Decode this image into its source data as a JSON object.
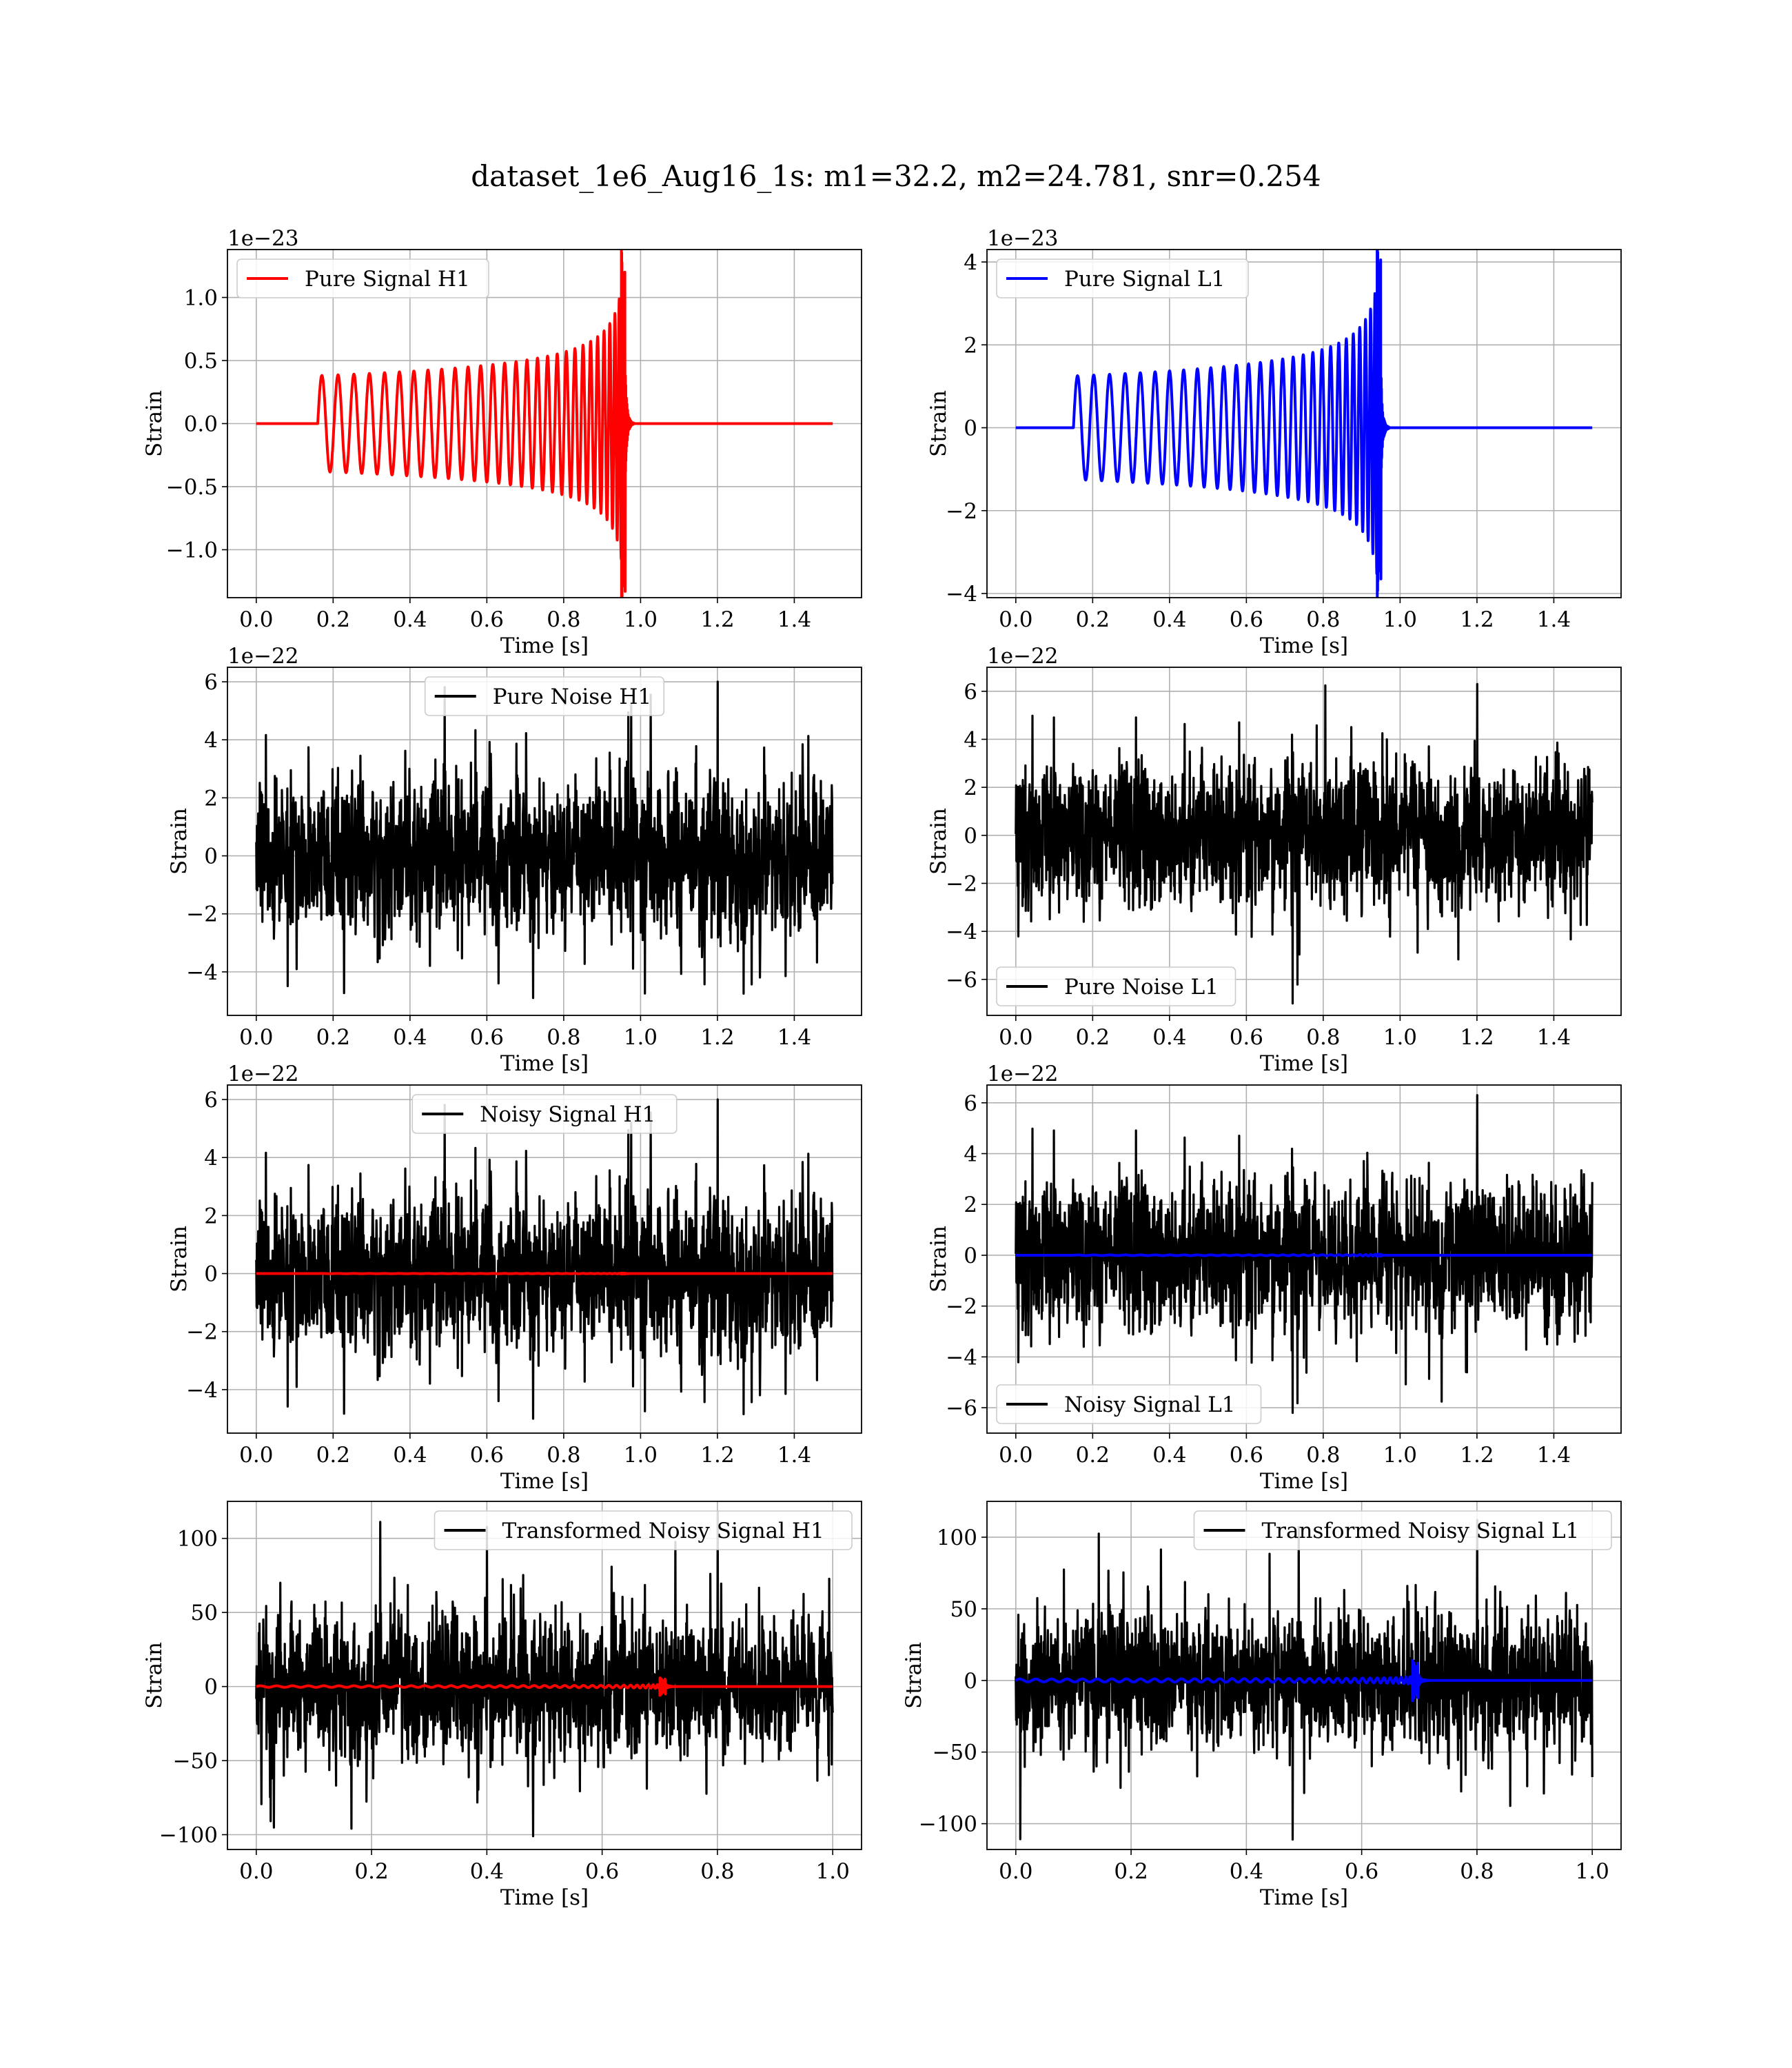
{
  "figure": {
    "suptitle": "dataset_1e6_Aug16_1s: m1=32.2, m2=24.781, snr=0.254"
  },
  "chart_data": [
    {
      "id": "p0",
      "type": "line",
      "title": "",
      "xlabel": "Time [s]",
      "ylabel": "Strain",
      "offset_label": "1e−23",
      "xlim": [
        -0.075,
        1.575
      ],
      "ylim": [
        -1.38,
        1.38
      ],
      "xticks": [
        0.0,
        0.2,
        0.4,
        0.6,
        0.8,
        1.0,
        1.2,
        1.4
      ],
      "xtick_labels": [
        "0.0",
        "0.2",
        "0.4",
        "0.6",
        "0.8",
        "1.0",
        "1.2",
        "1.4"
      ],
      "yticks": [
        -1.0,
        -0.5,
        0.0,
        0.5,
        1.0
      ],
      "ytick_labels": [
        "−1.0",
        "−0.5",
        "0.0",
        "0.5",
        "1.0"
      ],
      "grid": true,
      "legend_position": "upper left",
      "legend": [
        "Pure Signal H1"
      ],
      "series": [
        {
          "name": "Pure Signal H1",
          "color": "#ff0000",
          "kind": "chirp",
          "x_start": 0.0,
          "x_end": 1.5,
          "t_on": 0.16,
          "t_merge": 0.962,
          "amp_start": 0.38,
          "amp_peak": 1.2,
          "amp_min": -1.33,
          "cycles": 30,
          "seed": 1
        }
      ]
    },
    {
      "id": "p1",
      "type": "line",
      "title": "",
      "xlabel": "Time [s]",
      "ylabel": "Strain",
      "offset_label": "1e−23",
      "xlim": [
        -0.075,
        1.575
      ],
      "ylim": [
        -4.1,
        4.3
      ],
      "xticks": [
        0.0,
        0.2,
        0.4,
        0.6,
        0.8,
        1.0,
        1.2,
        1.4
      ],
      "xtick_labels": [
        "0.0",
        "0.2",
        "0.4",
        "0.6",
        "0.8",
        "1.0",
        "1.2",
        "1.4"
      ],
      "yticks": [
        -4,
        -2,
        0,
        2,
        4
      ],
      "ytick_labels": [
        "−4",
        "−2",
        "0",
        "2",
        "4"
      ],
      "grid": true,
      "legend_position": "upper left",
      "legend": [
        "Pure Signal L1"
      ],
      "series": [
        {
          "name": "Pure Signal L1",
          "color": "#0000ff",
          "kind": "chirp",
          "x_start": 0.0,
          "x_end": 1.5,
          "t_on": 0.15,
          "t_merge": 0.952,
          "amp_start": 1.25,
          "amp_peak": 4.05,
          "amp_min": -3.65,
          "cycles": 30,
          "seed": 2
        }
      ]
    },
    {
      "id": "p2",
      "type": "line",
      "title": "",
      "xlabel": "Time [s]",
      "ylabel": "Strain",
      "offset_label": "1e−22",
      "xlim": [
        -0.075,
        1.575
      ],
      "ylim": [
        -5.5,
        6.5
      ],
      "xticks": [
        0.0,
        0.2,
        0.4,
        0.6,
        0.8,
        1.0,
        1.2,
        1.4
      ],
      "xtick_labels": [
        "0.0",
        "0.2",
        "0.4",
        "0.6",
        "0.8",
        "1.0",
        "1.2",
        "1.4"
      ],
      "yticks": [
        -4,
        -2,
        0,
        2,
        4,
        6
      ],
      "ytick_labels": [
        "−4",
        "−2",
        "0",
        "2",
        "4",
        "6"
      ],
      "grid": true,
      "legend_position": "upper center",
      "legend": [
        "Pure Noise H1"
      ],
      "series": [
        {
          "name": "Pure Noise H1",
          "color": "#000000",
          "kind": "noise",
          "x_start": 0.0,
          "x_end": 1.5,
          "sigma": 1.35,
          "max": 6.0,
          "min": -4.9,
          "seed": 11
        }
      ]
    },
    {
      "id": "p3",
      "type": "line",
      "title": "",
      "xlabel": "Time [s]",
      "ylabel": "Strain",
      "offset_label": "1e−22",
      "xlim": [
        -0.075,
        1.575
      ],
      "ylim": [
        -7.5,
        7.0
      ],
      "xticks": [
        0.0,
        0.2,
        0.4,
        0.6,
        0.8,
        1.0,
        1.2,
        1.4
      ],
      "xtick_labels": [
        "0.0",
        "0.2",
        "0.4",
        "0.6",
        "0.8",
        "1.0",
        "1.2",
        "1.4"
      ],
      "yticks": [
        -6,
        -4,
        -2,
        0,
        2,
        4,
        6
      ],
      "ytick_labels": [
        "−6",
        "−4",
        "−2",
        "0",
        "2",
        "4",
        "6"
      ],
      "grid": true,
      "legend_position": "lower left",
      "legend": [
        "Pure Noise L1"
      ],
      "series": [
        {
          "name": "Pure Noise L1",
          "color": "#000000",
          "kind": "noise",
          "x_start": 0.0,
          "x_end": 1.5,
          "sigma": 1.45,
          "max": 6.3,
          "min": -7.0,
          "seed": 12
        }
      ]
    },
    {
      "id": "p4",
      "type": "line",
      "title": "",
      "xlabel": "Time [s]",
      "ylabel": "Strain",
      "offset_label": "1e−22",
      "xlim": [
        -0.075,
        1.575
      ],
      "ylim": [
        -5.5,
        6.5
      ],
      "xticks": [
        0.0,
        0.2,
        0.4,
        0.6,
        0.8,
        1.0,
        1.2,
        1.4
      ],
      "xtick_labels": [
        "0.0",
        "0.2",
        "0.4",
        "0.6",
        "0.8",
        "1.0",
        "1.2",
        "1.4"
      ],
      "yticks": [
        -4,
        -2,
        0,
        2,
        4,
        6
      ],
      "ytick_labels": [
        "−4",
        "−2",
        "0",
        "2",
        "4",
        "6"
      ],
      "grid": true,
      "legend_position": "upper center",
      "legend": [
        "Noisy Signal H1"
      ],
      "series": [
        {
          "name": "Noisy Signal H1",
          "color": "#000000",
          "kind": "noise",
          "x_start": 0.0,
          "x_end": 1.5,
          "sigma": 1.35,
          "max": 6.0,
          "min": -5.0,
          "seed": 11
        },
        {
          "name": "",
          "color": "#ff0000",
          "kind": "chirp",
          "x_start": 0.0,
          "x_end": 1.5,
          "t_on": 0.16,
          "t_merge": 0.962,
          "amp_start": 0.0038,
          "amp_peak": 0.012,
          "amp_min": -0.013,
          "cycles": 30,
          "seed": 1
        }
      ]
    },
    {
      "id": "p5",
      "type": "line",
      "title": "",
      "xlabel": "Time [s]",
      "ylabel": "Strain",
      "offset_label": "1e−22",
      "xlim": [
        -0.075,
        1.575
      ],
      "ylim": [
        -7.0,
        6.7
      ],
      "xticks": [
        0.0,
        0.2,
        0.4,
        0.6,
        0.8,
        1.0,
        1.2,
        1.4
      ],
      "xtick_labels": [
        "0.0",
        "0.2",
        "0.4",
        "0.6",
        "0.8",
        "1.0",
        "1.2",
        "1.4"
      ],
      "yticks": [
        -6,
        -4,
        -2,
        0,
        2,
        4,
        6
      ],
      "ytick_labels": [
        "−6",
        "−4",
        "−2",
        "0",
        "2",
        "4",
        "6"
      ],
      "grid": true,
      "legend_position": "lower left",
      "legend": [
        "Noisy Signal L1"
      ],
      "series": [
        {
          "name": "Noisy Signal L1",
          "color": "#000000",
          "kind": "noise",
          "x_start": 0.0,
          "x_end": 1.5,
          "sigma": 1.45,
          "max": 6.3,
          "min": -6.2,
          "seed": 12
        },
        {
          "name": "",
          "color": "#0000ff",
          "kind": "chirp",
          "x_start": 0.0,
          "x_end": 1.5,
          "t_on": 0.15,
          "t_merge": 0.952,
          "amp_start": 0.0125,
          "amp_peak": 0.041,
          "amp_min": -0.037,
          "cycles": 30,
          "seed": 2
        }
      ]
    },
    {
      "id": "p6",
      "type": "line",
      "title": "",
      "xlabel": "Time [s]",
      "ylabel": "Strain",
      "offset_label": "",
      "xlim": [
        -0.05,
        1.05
      ],
      "ylim": [
        -110,
        125
      ],
      "xticks": [
        0.0,
        0.2,
        0.4,
        0.6,
        0.8,
        1.0
      ],
      "xtick_labels": [
        "0.0",
        "0.2",
        "0.4",
        "0.6",
        "0.8",
        "1.0"
      ],
      "yticks": [
        -100,
        -50,
        0,
        50,
        100
      ],
      "ytick_labels": [
        "−100",
        "−50",
        "0",
        "50",
        "100"
      ],
      "grid": true,
      "legend_position": "upper right",
      "legend": [
        "Transformed Noisy Signal H1"
      ],
      "series": [
        {
          "name": "Transformed Noisy Signal H1",
          "color": "#000000",
          "kind": "noise",
          "x_start": 0.0,
          "x_end": 1.0,
          "sigma": 24,
          "max": 118,
          "min": -101,
          "seed": 21
        },
        {
          "name": "",
          "color": "#ff0000",
          "kind": "chirp",
          "x_start": 0.0,
          "x_end": 1.0,
          "t_on": 0.0,
          "t_merge": 0.712,
          "amp_start": 0.5,
          "amp_peak": 5,
          "amp_min": -5,
          "cycles": 40,
          "seed": 3
        }
      ]
    },
    {
      "id": "p7",
      "type": "line",
      "title": "",
      "xlabel": "Time [s]",
      "ylabel": "Strain",
      "offset_label": "",
      "xlim": [
        -0.05,
        1.05
      ],
      "ylim": [
        -118,
        125
      ],
      "xticks": [
        0.0,
        0.2,
        0.4,
        0.6,
        0.8,
        1.0
      ],
      "xtick_labels": [
        "0.0",
        "0.2",
        "0.4",
        "0.6",
        "0.8",
        "1.0"
      ],
      "yticks": [
        -100,
        -50,
        0,
        50,
        100
      ],
      "ytick_labels": [
        "−100",
        "−50",
        "0",
        "50",
        "100"
      ],
      "grid": true,
      "legend_position": "upper right",
      "legend": [
        "Transformed Noisy Signal L1"
      ],
      "series": [
        {
          "name": "Transformed Noisy Signal L1",
          "color": "#000000",
          "kind": "noise",
          "x_start": 0.0,
          "x_end": 1.0,
          "sigma": 24,
          "max": 112,
          "min": -111,
          "seed": 22
        },
        {
          "name": "",
          "color": "#0000ff",
          "kind": "chirp",
          "x_start": 0.0,
          "x_end": 1.0,
          "t_on": 0.0,
          "t_merge": 0.7,
          "amp_start": 1.0,
          "amp_peak": 12,
          "amp_min": -12,
          "cycles": 40,
          "seed": 4
        }
      ]
    }
  ]
}
